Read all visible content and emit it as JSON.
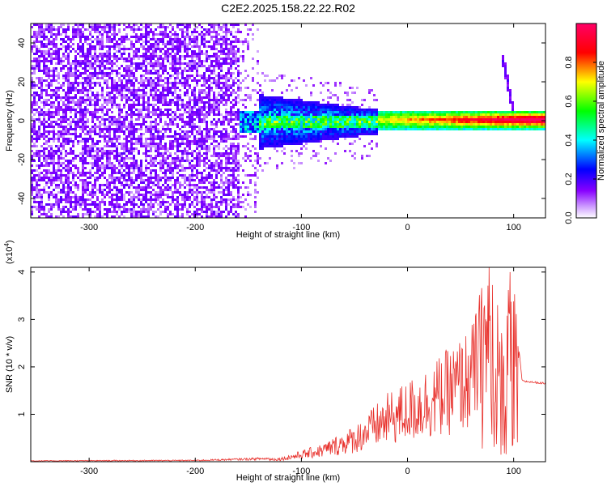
{
  "title": "C2E2.2025.158.22.22.R02",
  "chart_data": [
    {
      "type": "heatmap",
      "xlabel": "Height of straight line (km)",
      "ylabel": "Frequency (Hz)",
      "xlim": [
        -355,
        130
      ],
      "ylim": [
        -50,
        50
      ],
      "xticks": [
        -300,
        -200,
        -100,
        0,
        100
      ],
      "yticks": [
        -40,
        -20,
        0,
        20,
        40
      ],
      "colorbar": {
        "label": "Normalized spectral amplitude",
        "range": [
          0,
          1
        ],
        "ticks": [
          "0.0",
          "0.2",
          "0.4",
          "0.6",
          "0.8"
        ],
        "tick_values": [
          0.0,
          0.2,
          0.4,
          0.6,
          0.8
        ],
        "colors": [
          "#ffffff",
          "#cc99ff",
          "#8800ff",
          "#0000ff",
          "#00ffff",
          "#00ff00",
          "#ffff00",
          "#ff0000",
          "#ff0066"
        ]
      },
      "regions": [
        {
          "x_range": [
            -355,
            -160
          ],
          "freq_range": [
            -50,
            50
          ],
          "amplitude": 0.15,
          "description_level": "noise"
        },
        {
          "x_range": [
            -160,
            -30
          ],
          "freq_range": [
            -15,
            15
          ],
          "amplitude": 0.4
        },
        {
          "x_range": [
            -30,
            130
          ],
          "freq_range": [
            -5,
            5
          ],
          "amplitude": 0.8
        },
        {
          "x_range": [
            88,
            100
          ],
          "freq_range": [
            0,
            35
          ],
          "amplitude": 0.2
        }
      ]
    },
    {
      "type": "line",
      "xlabel": "Height of straight line (km)",
      "ylabel": "SNR (10 * v/v)",
      "yunit": "(x10",
      "yunit_exp": "4",
      "yunit_close": ")",
      "xlim": [
        -355,
        130
      ],
      "ylim": [
        0,
        4.1
      ],
      "xticks": [
        -300,
        -200,
        -100,
        0,
        100
      ],
      "yticks": [
        1,
        2,
        3,
        4
      ],
      "color": "#e8312c",
      "envelope": [
        {
          "x": -355,
          "y": 0.02
        },
        {
          "x": -200,
          "y": 0.03
        },
        {
          "x": -120,
          "y": 0.08
        },
        {
          "x": -80,
          "y": 0.35
        },
        {
          "x": -50,
          "y": 0.7
        },
        {
          "x": -20,
          "y": 1.3
        },
        {
          "x": 10,
          "y": 1.7
        },
        {
          "x": 40,
          "y": 2.2
        },
        {
          "x": 60,
          "y": 2.6
        },
        {
          "x": 78,
          "y": 4.1
        },
        {
          "x": 90,
          "y": 2.4
        },
        {
          "x": 98,
          "y": 3.9
        },
        {
          "x": 108,
          "y": 1.7
        },
        {
          "x": 130,
          "y": 1.65
        }
      ]
    }
  ]
}
